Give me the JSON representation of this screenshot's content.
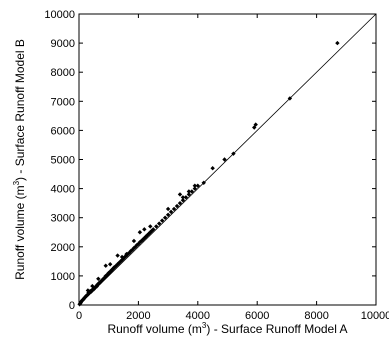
{
  "chart_data": {
    "type": "scatter",
    "title": "",
    "xlabel": {
      "pre": "Runoff volume (m",
      "sup": "3",
      "post": ") - Surface Runoff Model A"
    },
    "ylabel": {
      "pre": "Runoff volume (m",
      "sup": "3",
      "post": ") - Surface Runoff Model B"
    },
    "xlim": [
      0,
      10000
    ],
    "ylim": [
      0,
      10000
    ],
    "xticks": [
      0,
      2000,
      4000,
      6000,
      8000,
      10000
    ],
    "yticks": [
      0,
      1000,
      2000,
      3000,
      4000,
      5000,
      6000,
      7000,
      8000,
      9000,
      10000
    ],
    "grid": false,
    "reference_line": {
      "from": [
        0,
        0
      ],
      "to": [
        10000,
        10000
      ]
    },
    "marker_color": "#000000",
    "points": [
      [
        20,
        25
      ],
      [
        40,
        50
      ],
      [
        60,
        80
      ],
      [
        80,
        120
      ],
      [
        100,
        150
      ],
      [
        120,
        170
      ],
      [
        150,
        190
      ],
      [
        170,
        230
      ],
      [
        200,
        260
      ],
      [
        230,
        300
      ],
      [
        260,
        330
      ],
      [
        300,
        360
      ],
      [
        320,
        420
      ],
      [
        350,
        430
      ],
      [
        380,
        480
      ],
      [
        400,
        450
      ],
      [
        420,
        470
      ],
      [
        450,
        520
      ],
      [
        480,
        560
      ],
      [
        500,
        540
      ],
      [
        520,
        580
      ],
      [
        550,
        600
      ],
      [
        580,
        650
      ],
      [
        600,
        640
      ],
      [
        620,
        700
      ],
      [
        650,
        720
      ],
      [
        680,
        760
      ],
      [
        700,
        760
      ],
      [
        720,
        800
      ],
      [
        750,
        820
      ],
      [
        780,
        850
      ],
      [
        800,
        870
      ],
      [
        820,
        900
      ],
      [
        850,
        920
      ],
      [
        880,
        960
      ],
      [
        900,
        1000
      ],
      [
        920,
        990
      ],
      [
        950,
        1030
      ],
      [
        980,
        1080
      ],
      [
        1000,
        1100
      ],
      [
        1020,
        1100
      ],
      [
        1050,
        1150
      ],
      [
        1080,
        1170
      ],
      [
        1100,
        1200
      ],
      [
        1120,
        1220
      ],
      [
        1150,
        1250
      ],
      [
        1180,
        1290
      ],
      [
        1200,
        1300
      ],
      [
        1250,
        1350
      ],
      [
        1300,
        1400
      ],
      [
        1350,
        1450
      ],
      [
        1400,
        1500
      ],
      [
        1450,
        1550
      ],
      [
        1500,
        1600
      ],
      [
        1550,
        1660
      ],
      [
        1600,
        1700
      ],
      [
        1650,
        1760
      ],
      [
        1700,
        1800
      ],
      [
        1750,
        1860
      ],
      [
        1800,
        1900
      ],
      [
        1850,
        1960
      ],
      [
        1900,
        2000
      ],
      [
        1950,
        2060
      ],
      [
        2000,
        2100
      ],
      [
        2050,
        2160
      ],
      [
        2100,
        2200
      ],
      [
        2150,
        2250
      ],
      [
        2200,
        2300
      ],
      [
        2250,
        2350
      ],
      [
        2300,
        2400
      ],
      [
        2350,
        2450
      ],
      [
        2400,
        2500
      ],
      [
        2450,
        2550
      ],
      [
        2500,
        2600
      ],
      [
        2600,
        2700
      ],
      [
        2700,
        2800
      ],
      [
        2800,
        2900
      ],
      [
        2900,
        3000
      ],
      [
        3000,
        3100
      ],
      [
        3100,
        3200
      ],
      [
        3200,
        3300
      ],
      [
        3300,
        3400
      ],
      [
        3400,
        3500
      ],
      [
        3500,
        3600
      ],
      [
        3600,
        3700
      ],
      [
        3700,
        3800
      ],
      [
        3800,
        3900
      ],
      [
        3900,
        4000
      ],
      [
        4000,
        4100
      ],
      [
        300,
        500
      ],
      [
        450,
        650
      ],
      [
        650,
        900
      ],
      [
        900,
        1350
      ],
      [
        1050,
        1400
      ],
      [
        1300,
        1700
      ],
      [
        1450,
        1650
      ],
      [
        1600,
        1750
      ],
      [
        1850,
        2200
      ],
      [
        2050,
        2500
      ],
      [
        2200,
        2600
      ],
      [
        2400,
        2700
      ],
      [
        3000,
        3300
      ],
      [
        3400,
        3800
      ],
      [
        3500,
        3700
      ],
      [
        3700,
        3900
      ],
      [
        3900,
        4100
      ],
      [
        4200,
        4200
      ],
      [
        4500,
        4700
      ],
      [
        4900,
        5000
      ],
      [
        5200,
        5200
      ],
      [
        5900,
        6100
      ],
      [
        5950,
        6200
      ],
      [
        7100,
        7100
      ],
      [
        8700,
        9000
      ]
    ]
  }
}
